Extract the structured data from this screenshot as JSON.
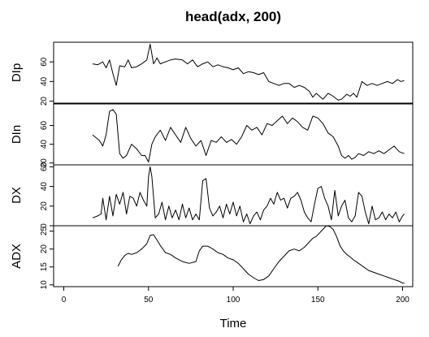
{
  "chart_data": {
    "type": "line",
    "title": "head(adx, 200)",
    "xlabel": "Time",
    "xlim": [
      -6,
      206
    ],
    "xticks": [
      0,
      50,
      100,
      150,
      200
    ],
    "grid": false,
    "legend": "none",
    "panels": [
      {
        "name": "DIp",
        "ylabel": "DIp",
        "ylim": [
          18,
          80
        ],
        "yticks": [
          20,
          40,
          60
        ],
        "x": [
          17,
          20,
          23,
          25,
          27,
          29,
          31,
          33,
          36,
          38,
          40,
          43,
          46,
          49,
          51,
          53,
          55,
          57,
          60,
          63,
          66,
          70,
          73,
          76,
          79,
          82,
          85,
          88,
          91,
          94,
          97,
          100,
          103,
          106,
          109,
          112,
          115,
          118,
          121,
          124,
          127,
          130,
          133,
          136,
          139,
          142,
          145,
          147,
          149,
          151,
          153,
          156,
          159,
          162,
          164,
          167,
          169,
          171,
          173,
          176,
          179,
          182,
          185,
          188,
          191,
          194,
          197,
          199,
          201
        ],
        "values": [
          58,
          57,
          60,
          54,
          62,
          48,
          36,
          56,
          55,
          62,
          54,
          55,
          58,
          62,
          78,
          58,
          64,
          58,
          60,
          62,
          63,
          62,
          58,
          62,
          55,
          58,
          60,
          55,
          57,
          55,
          54,
          52,
          54,
          48,
          50,
          49,
          47,
          49,
          40,
          38,
          36,
          38,
          38,
          34,
          36,
          34,
          30,
          24,
          28,
          25,
          22,
          28,
          25,
          21,
          22,
          27,
          25,
          28,
          24,
          40,
          36,
          38,
          36,
          38,
          40,
          38,
          42,
          40,
          41
        ]
      },
      {
        "name": "DIn",
        "ylabel": "DIn",
        "ylim": [
          18,
          83
        ],
        "yticks": [
          20,
          40,
          60
        ],
        "x": [
          17,
          19,
          21,
          23,
          25,
          27,
          29,
          31,
          33,
          35,
          37,
          40,
          43,
          46,
          48,
          50,
          52,
          54,
          57,
          60,
          63,
          66,
          69,
          72,
          75,
          78,
          81,
          84,
          87,
          90,
          93,
          96,
          99,
          102,
          105,
          108,
          111,
          114,
          117,
          120,
          123,
          126,
          129,
          132,
          135,
          138,
          141,
          144,
          147,
          150,
          153,
          156,
          159,
          162,
          164,
          166,
          168,
          170,
          172,
          174,
          177,
          180,
          183,
          186,
          189,
          192,
          195,
          198,
          201
        ],
        "values": [
          50,
          47,
          44,
          38,
          50,
          75,
          77,
          72,
          30,
          25,
          28,
          40,
          35,
          28,
          28,
          21,
          40,
          48,
          55,
          44,
          58,
          50,
          42,
          58,
          46,
          38,
          44,
          28,
          44,
          42,
          48,
          42,
          45,
          40,
          48,
          60,
          55,
          58,
          50,
          62,
          60,
          65,
          70,
          62,
          68,
          64,
          58,
          55,
          70,
          68,
          62,
          52,
          48,
          38,
          28,
          25,
          28,
          24,
          26,
          30,
          28,
          32,
          30,
          33,
          30,
          34,
          38,
          32,
          30
        ]
      },
      {
        "name": "DX",
        "ylabel": "DX",
        "ylim": [
          0,
          62
        ],
        "yticks": [
          0,
          20,
          40,
          60
        ],
        "x": [
          17,
          20,
          22,
          23,
          25,
          27,
          29,
          31,
          33,
          35,
          37,
          39,
          41,
          43,
          45,
          47,
          49,
          50,
          51,
          52,
          54,
          56,
          58,
          60,
          62,
          64,
          66,
          68,
          70,
          72,
          74,
          76,
          78,
          80,
          82,
          84,
          86,
          88,
          90,
          92,
          94,
          96,
          98,
          100,
          102,
          104,
          106,
          108,
          110,
          112,
          114,
          116,
          118,
          120,
          122,
          124,
          126,
          128,
          130,
          132,
          134,
          136,
          138,
          140,
          142,
          144,
          146,
          148,
          150,
          152,
          154,
          156,
          158,
          160,
          162,
          164,
          166,
          168,
          170,
          172,
          174,
          176,
          178,
          180,
          182,
          184,
          186,
          188,
          190,
          192,
          194,
          196,
          198,
          200,
          201
        ],
        "values": [
          8,
          10,
          12,
          28,
          6,
          30,
          10,
          32,
          22,
          34,
          12,
          30,
          28,
          20,
          34,
          26,
          20,
          50,
          60,
          50,
          8,
          12,
          24,
          6,
          20,
          8,
          16,
          6,
          22,
          8,
          18,
          6,
          12,
          6,
          46,
          48,
          18,
          10,
          14,
          20,
          8,
          22,
          12,
          24,
          10,
          20,
          4,
          12,
          2,
          10,
          14,
          6,
          16,
          20,
          28,
          22,
          34,
          26,
          28,
          18,
          28,
          30,
          34,
          26,
          14,
          8,
          4,
          22,
          38,
          40,
          28,
          20,
          6,
          36,
          10,
          20,
          26,
          8,
          4,
          10,
          34,
          30,
          14,
          2,
          20,
          6,
          8,
          14,
          6,
          12,
          8,
          14,
          4,
          10,
          12
        ]
      },
      {
        "name": "ADX",
        "ylabel": "ADX",
        "ylim": [
          9.5,
          26.5
        ],
        "yticks": [
          10,
          15,
          20,
          25
        ],
        "x": [
          32,
          34,
          36,
          38,
          40,
          43,
          46,
          49,
          51,
          53,
          55,
          57,
          60,
          63,
          66,
          70,
          74,
          78,
          80,
          82,
          85,
          88,
          91,
          94,
          97,
          100,
          103,
          106,
          109,
          112,
          115,
          118,
          121,
          124,
          127,
          130,
          133,
          136,
          139,
          142,
          145,
          147,
          149,
          152,
          155,
          157,
          159,
          161,
          163,
          165,
          167,
          169,
          171,
          174,
          177,
          180,
          183,
          186,
          189,
          192,
          195,
          198,
          200,
          201
        ],
        "values": [
          15.2,
          17.0,
          18.2,
          18.8,
          18.5,
          19.0,
          20.0,
          21.5,
          23.8,
          24.0,
          22.5,
          21.0,
          19.0,
          18.5,
          17.5,
          16.5,
          16.0,
          16.5,
          19.5,
          20.8,
          20.8,
          20.0,
          19.0,
          18.5,
          17.5,
          17.0,
          16.0,
          14.5,
          13.0,
          12.0,
          11.2,
          11.5,
          12.5,
          14.5,
          16.5,
          18.0,
          19.5,
          20.0,
          19.5,
          20.5,
          22.0,
          23.0,
          23.5,
          25.0,
          26.5,
          26.3,
          25.5,
          23.5,
          21.0,
          19.5,
          18.5,
          17.8,
          17.0,
          16.0,
          15.0,
          14.0,
          13.5,
          13.0,
          12.5,
          12.0,
          11.5,
          11.0,
          10.5,
          10.5
        ]
      }
    ]
  }
}
